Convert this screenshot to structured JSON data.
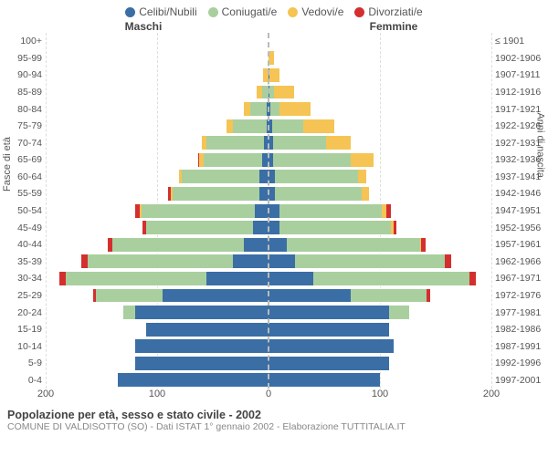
{
  "legend": [
    {
      "label": "Celibi/Nubili",
      "color": "#3a6ea5"
    },
    {
      "label": "Coniugati/e",
      "color": "#a9cf9e"
    },
    {
      "label": "Vedovi/e",
      "color": "#f5c454"
    },
    {
      "label": "Divorziati/e",
      "color": "#d32f2f"
    }
  ],
  "headers": {
    "male": "Maschi",
    "female": "Femmine"
  },
  "y_left_title": "Fasce di età",
  "y_right_title": "Anni di nascita",
  "age_labels": [
    "100+",
    "95-99",
    "90-94",
    "85-89",
    "80-84",
    "75-79",
    "70-74",
    "65-69",
    "60-64",
    "55-59",
    "50-54",
    "45-49",
    "40-44",
    "35-39",
    "30-34",
    "25-29",
    "20-24",
    "15-19",
    "10-14",
    "5-9",
    "0-4"
  ],
  "year_labels": [
    "≤ 1901",
    "1902-1906",
    "1907-1911",
    "1912-1916",
    "1917-1921",
    "1922-1926",
    "1927-1931",
    "1932-1936",
    "1937-1941",
    "1942-1946",
    "1947-1951",
    "1952-1956",
    "1957-1961",
    "1962-1966",
    "1967-1971",
    "1972-1976",
    "1977-1981",
    "1982-1986",
    "1987-1991",
    "1992-1996",
    "1997-2001"
  ],
  "colors": {
    "single": "#3a6ea5",
    "married": "#a9cf9e",
    "widowed": "#f5c454",
    "divorced": "#d32f2f",
    "grid": "#dddddd",
    "centerline": "#bbbbbb",
    "background": "#ffffff"
  },
  "xmax": 200,
  "xticks_male": [
    200,
    100,
    0
  ],
  "xticks_female": [
    100,
    200
  ],
  "male": [
    {
      "single": 0,
      "married": 0,
      "widowed": 0,
      "divorced": 0
    },
    {
      "single": 0,
      "married": 0,
      "widowed": 0,
      "divorced": 0
    },
    {
      "single": 0,
      "married": 0,
      "widowed": 5,
      "divorced": 0
    },
    {
      "single": 0,
      "married": 6,
      "widowed": 5,
      "divorced": 0
    },
    {
      "single": 2,
      "married": 14,
      "widowed": 6,
      "divorced": 0
    },
    {
      "single": 2,
      "married": 30,
      "widowed": 6,
      "divorced": 0
    },
    {
      "single": 4,
      "married": 52,
      "widowed": 4,
      "divorced": 0
    },
    {
      "single": 6,
      "married": 52,
      "widowed": 4,
      "divorced": 1
    },
    {
      "single": 8,
      "married": 70,
      "widowed": 2,
      "divorced": 0
    },
    {
      "single": 8,
      "married": 78,
      "widowed": 2,
      "divorced": 2
    },
    {
      "single": 12,
      "married": 102,
      "widowed": 2,
      "divorced": 4
    },
    {
      "single": 14,
      "married": 96,
      "widowed": 0,
      "divorced": 3
    },
    {
      "single": 22,
      "married": 118,
      "widowed": 0,
      "divorced": 4
    },
    {
      "single": 32,
      "married": 130,
      "widowed": 0,
      "divorced": 6
    },
    {
      "single": 56,
      "married": 126,
      "widowed": 0,
      "divorced": 6
    },
    {
      "single": 95,
      "married": 60,
      "widowed": 0,
      "divorced": 2
    },
    {
      "single": 120,
      "married": 10,
      "widowed": 0,
      "divorced": 0
    },
    {
      "single": 110,
      "married": 0,
      "widowed": 0,
      "divorced": 0
    },
    {
      "single": 120,
      "married": 0,
      "widowed": 0,
      "divorced": 0
    },
    {
      "single": 120,
      "married": 0,
      "widowed": 0,
      "divorced": 0
    },
    {
      "single": 135,
      "married": 0,
      "widowed": 0,
      "divorced": 0
    }
  ],
  "female": [
    {
      "single": 0,
      "married": 0,
      "widowed": 0,
      "divorced": 0
    },
    {
      "single": 0,
      "married": 0,
      "widowed": 5,
      "divorced": 0
    },
    {
      "single": 1,
      "married": 0,
      "widowed": 9,
      "divorced": 0
    },
    {
      "single": 1,
      "married": 4,
      "widowed": 18,
      "divorced": 0
    },
    {
      "single": 2,
      "married": 8,
      "widowed": 28,
      "divorced": 0
    },
    {
      "single": 3,
      "married": 28,
      "widowed": 28,
      "divorced": 0
    },
    {
      "single": 4,
      "married": 48,
      "widowed": 22,
      "divorced": 0
    },
    {
      "single": 4,
      "married": 70,
      "widowed": 20,
      "divorced": 0
    },
    {
      "single": 6,
      "married": 74,
      "widowed": 8,
      "divorced": 0
    },
    {
      "single": 6,
      "married": 78,
      "widowed": 6,
      "divorced": 0
    },
    {
      "single": 10,
      "married": 92,
      "widowed": 4,
      "divorced": 4
    },
    {
      "single": 10,
      "married": 100,
      "widowed": 2,
      "divorced": 3
    },
    {
      "single": 16,
      "married": 120,
      "widowed": 1,
      "divorced": 4
    },
    {
      "single": 24,
      "married": 134,
      "widowed": 0,
      "divorced": 6
    },
    {
      "single": 40,
      "married": 140,
      "widowed": 0,
      "divorced": 6
    },
    {
      "single": 74,
      "married": 68,
      "widowed": 0,
      "divorced": 3
    },
    {
      "single": 108,
      "married": 18,
      "widowed": 0,
      "divorced": 0
    },
    {
      "single": 108,
      "married": 0,
      "widowed": 0,
      "divorced": 0
    },
    {
      "single": 112,
      "married": 0,
      "widowed": 0,
      "divorced": 0
    },
    {
      "single": 108,
      "married": 0,
      "widowed": 0,
      "divorced": 0
    },
    {
      "single": 100,
      "married": 0,
      "widowed": 0,
      "divorced": 0
    }
  ],
  "footer": {
    "title": "Popolazione per età, sesso e stato civile - 2002",
    "sub": "COMUNE DI VALDISOTTO (SO) - Dati ISTAT 1° gennaio 2002 - Elaborazione TUTTITALIA.IT"
  },
  "fontsize": {
    "legend": 12,
    "axis": 10.5,
    "title": 12.5,
    "sub": 10.5
  }
}
